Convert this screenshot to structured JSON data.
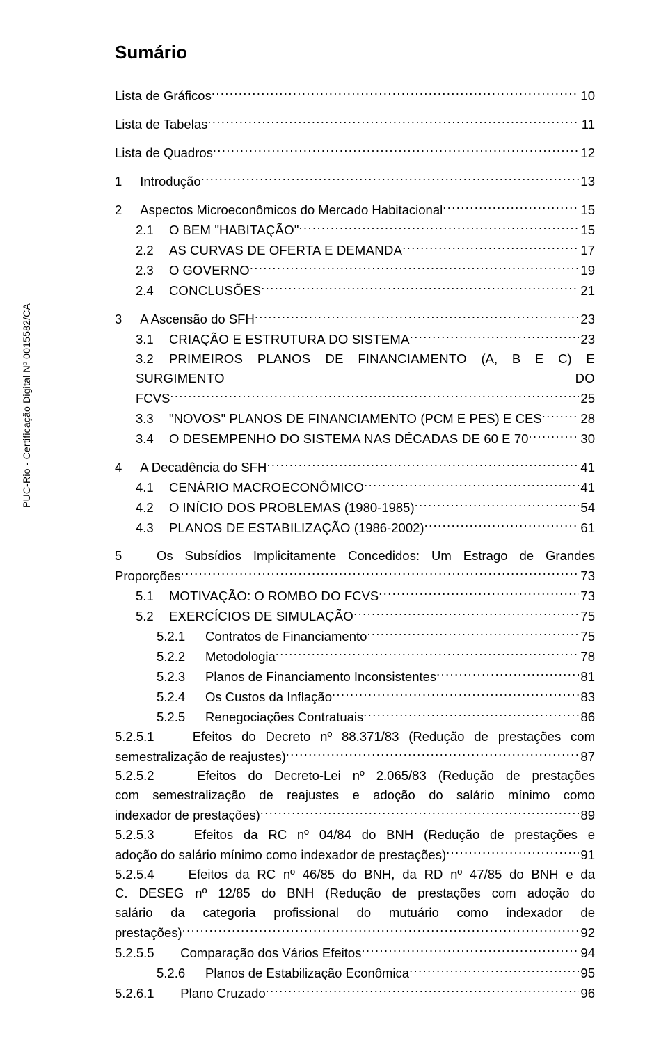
{
  "sidebar": "PUC-Rio - Certificação Digital Nº 0015582/CA",
  "title": "Sumário",
  "toc": {
    "e0": {
      "label": "Lista de Gráficos",
      "page": "10"
    },
    "e1": {
      "label": "Lista de Tabelas",
      "page": "11"
    },
    "e2": {
      "label": "Lista de Quadros",
      "page": "12"
    },
    "e3": {
      "num": "1",
      "label": "Introdução",
      "page": "13"
    },
    "e4": {
      "num": "2",
      "label": "Aspectos Microeconômicos do Mercado Habitacional",
      "page": "15"
    },
    "e5": {
      "num": "2.1",
      "label_a": "O B",
      "label_b": "EM",
      "label_c": " \"H",
      "label_d": "ABITAÇÃO",
      "label_e": "\"",
      "page": "15"
    },
    "e6": {
      "num": "2.2",
      "label_a": "A",
      "label_b": "S",
      "label_c": " C",
      "label_d": "URVAS DE",
      "label_e": " O",
      "label_f": "FERTA E",
      "label_g": " D",
      "label_h": "EMANDA",
      "page": "17"
    },
    "e7": {
      "num": "2.3",
      "label_a": "O G",
      "label_b": "OVERNO",
      "page": "19"
    },
    "e8": {
      "num": "2.4",
      "label_a": "C",
      "label_b": "ONCLUSÕES",
      "page": "21"
    },
    "e9": {
      "num": "3",
      "label": "A Ascensão do SFH",
      "page": "23"
    },
    "e10": {
      "num": "3.1",
      "label_a": "C",
      "label_b": "RIAÇÃO E",
      "label_c": " E",
      "label_d": "STRUTURA DO",
      "label_e": " S",
      "label_f": "ISTEMA",
      "page": "23"
    },
    "e11": {
      "num": "3.2",
      "line1_a": "P",
      "line1_b": "RIMEIROS",
      "line1_c": " P",
      "line1_d": "LANOS DE",
      "line1_e": " F",
      "line1_f": "INANCIAMENTO",
      "line1_g": " (A, B ",
      "line1_h": "E",
      "line1_i": " C) ",
      "line1_j": "E",
      "line1_k": " S",
      "line1_l": "URGIMENTO DO",
      "tail": "FCVS",
      "page": "25"
    },
    "e12": {
      "num": "3.3",
      "label_a": "\"N",
      "label_b": "OVOS",
      "label_c": "\" P",
      "label_d": "LANOS DE",
      "label_e": " F",
      "label_f": "INANCIAMENTO",
      "label_g": " (PCM ",
      "label_h": "E",
      "label_i": " PES) ",
      "label_j": "E",
      "label_k": " CES",
      "page": "28"
    },
    "e13": {
      "num": "3.4",
      "label_a": "O D",
      "label_b": "ESEMPENHO DO",
      "label_c": " S",
      "label_d": "ISTEMA NAS",
      "label_e": " D",
      "label_f": "ÉCADAS DE",
      "label_g": " 60 ",
      "label_h": "E",
      "label_i": " 70",
      "page": "30"
    },
    "e14": {
      "num": "4",
      "label": "A Decadência do SFH",
      "page": "41"
    },
    "e15": {
      "num": "4.1",
      "label_a": "C",
      "label_b": "ENÁRIO",
      "label_c": " M",
      "label_d": "ACROECONÔMICO",
      "page": "41"
    },
    "e16": {
      "num": "4.2",
      "label_a": "O I",
      "label_b": "NÍCIO DOS",
      "label_c": " P",
      "label_d": "ROBLEMAS",
      "label_e": " (1980-1985)",
      "page": "54"
    },
    "e17": {
      "num": "4.3",
      "label_a": "P",
      "label_b": "LANOS DE",
      "label_c": " E",
      "label_d": "STABILIZAÇÃO",
      "label_e": " (1986-2002)",
      "page": "61"
    },
    "e18": {
      "num": "5",
      "line1": "Os Subsídios Implicitamente Concedidos: Um Estrago de Grandes",
      "tail": "Proporções",
      "page": "73"
    },
    "e19": {
      "num": "5.1",
      "label_a": "M",
      "label_b": "OTIVAÇÃO",
      "label_c": ": O R",
      "label_d": "OMBO DO",
      "label_e": " FCVS",
      "page": "73"
    },
    "e20": {
      "num": "5.2",
      "label_a": "E",
      "label_b": "XERCÍCIOS DE",
      "label_c": " S",
      "label_d": "IMULAÇÃO",
      "page": "75"
    },
    "e21": {
      "num": "5.2.1",
      "label": "Contratos de Financiamento",
      "page": "75"
    },
    "e22": {
      "num": "5.2.2",
      "label": "Metodologia",
      "page": "78"
    },
    "e23": {
      "num": "5.2.3",
      "label": "Planos de Financiamento Inconsistentes",
      "page": "81"
    },
    "e24": {
      "num": "5.2.4",
      "label": "Os Custos da Inflação",
      "page": "83"
    },
    "e25": {
      "num": "5.2.5",
      "label": "Renegociações Contratuais",
      "page": "86"
    },
    "e26": {
      "num": "5.2.5.1",
      "line1": "Efeitos do Decreto nº 88.371/83 (Redução de prestações com",
      "tail": "semestralização de reajustes)",
      "page": "87"
    },
    "e27": {
      "num": "5.2.5.2",
      "line1": "Efeitos do Decreto-Lei nº 2.065/83 (Redução de prestações",
      "line2": "com semestralização de reajustes e adoção do salário mínimo como",
      "tail": "indexador de prestações)",
      "page": "89"
    },
    "e28": {
      "num": "5.2.5.3",
      "line1": "Efeitos da RC nº 04/84 do BNH (Redução de prestações e",
      "tail": "adoção do salário mínimo como indexador de prestações)",
      "page": "91"
    },
    "e29": {
      "num": "5.2.5.4",
      "line1": "Efeitos da RC nº 46/85 do BNH, da RD nº 47/85 do BNH e da",
      "line2": "C. DESEG nº 12/85 do BNH (Redução de prestações com adoção do",
      "line3": "salário da categoria profissional do mutuário como indexador de",
      "tail": "prestações)",
      "page": "92"
    },
    "e30": {
      "num": "5.2.5.5",
      "label": "Comparação dos Vários Efeitos",
      "page": "94"
    },
    "e31": {
      "num": "5.2.6",
      "label": "Planos de Estabilização Econômica",
      "page": "95"
    },
    "e32": {
      "num": "5.2.6.1",
      "label": "Plano Cruzado",
      "page": "96"
    }
  }
}
